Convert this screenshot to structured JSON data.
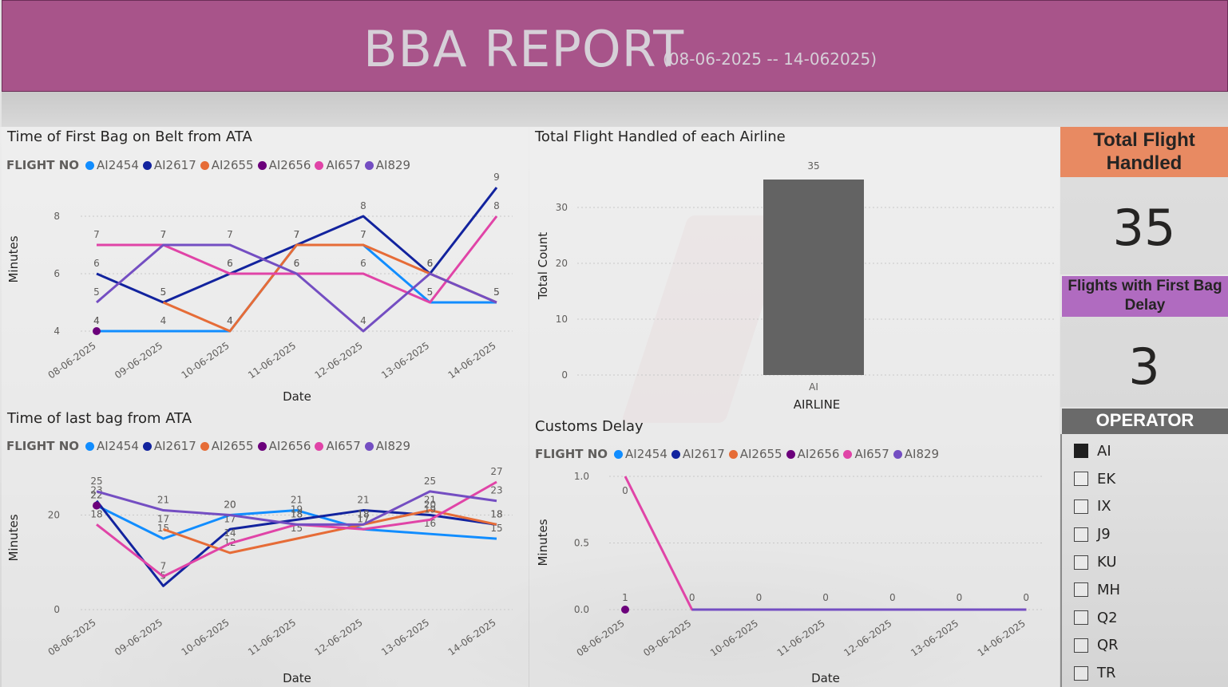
{
  "header": {
    "title": "BBA REPORT",
    "date_range": "(08-06-2025 -- 14-062025)"
  },
  "colors": {
    "AI2454": "#118dff",
    "AI2617": "#12239e",
    "AI2655": "#e66c37",
    "AI2656": "#6b007b",
    "AI657": "#e044a7",
    "AI829": "#744ec2"
  },
  "legend": {
    "title": "FLIGHT NO",
    "items": [
      "AI2454",
      "AI2617",
      "AI2655",
      "AI2656",
      "AI657",
      "AI829"
    ]
  },
  "kpi": {
    "total_label": "Total Flight Handled",
    "total_value": "35",
    "delay_label": "Flights with First Bag Delay",
    "delay_value": "3"
  },
  "operator": {
    "title": "OPERATOR",
    "options": [
      {
        "label": "AI",
        "checked": true
      },
      {
        "label": "EK",
        "checked": false
      },
      {
        "label": "IX",
        "checked": false
      },
      {
        "label": "J9",
        "checked": false
      },
      {
        "label": "KU",
        "checked": false
      },
      {
        "label": "MH",
        "checked": false
      },
      {
        "label": "Q2",
        "checked": false
      },
      {
        "label": "QR",
        "checked": false
      },
      {
        "label": "TR",
        "checked": false
      }
    ]
  },
  "chart_data": [
    {
      "id": "first_bag",
      "type": "line",
      "title": "Time of First Bag on Belt from ATA",
      "xlabel": "Date",
      "ylabel": "Minutes",
      "x": [
        "08-06-2025",
        "09-06-2025",
        "10-06-2025",
        "11-06-2025",
        "12-06-2025",
        "13-06-2025",
        "14-06-2025"
      ],
      "ylim": [
        4,
        9
      ],
      "yticks": [
        4,
        6,
        8
      ],
      "series": [
        {
          "name": "AI2454",
          "values": [
            4,
            4,
            4,
            7,
            7,
            5,
            5
          ]
        },
        {
          "name": "AI2617",
          "values": [
            6,
            5,
            6,
            7,
            8,
            6,
            9
          ]
        },
        {
          "name": "AI2655",
          "values": [
            null,
            5,
            4,
            7,
            7,
            6,
            5
          ]
        },
        {
          "name": "AI2656",
          "values": [
            4,
            null,
            null,
            null,
            null,
            null,
            null
          ]
        },
        {
          "name": "AI657",
          "values": [
            7,
            7,
            6,
            6,
            6,
            5,
            8
          ]
        },
        {
          "name": "AI829",
          "values": [
            5,
            7,
            7,
            6,
            4,
            6,
            5
          ]
        }
      ]
    },
    {
      "id": "total_flights",
      "type": "bar",
      "title": "Total Flight Handled of each Airline",
      "xlabel": "AIRLINE",
      "ylabel": "Total Count",
      "categories": [
        "AI"
      ],
      "values": [
        35
      ],
      "ylim": [
        0,
        35
      ],
      "yticks": [
        0,
        10,
        20,
        30
      ]
    },
    {
      "id": "last_bag",
      "type": "line",
      "title": "Time of last bag from ATA",
      "xlabel": "Date",
      "ylabel": "Minutes",
      "x": [
        "08-06-2025",
        "09-06-2025",
        "10-06-2025",
        "11-06-2025",
        "12-06-2025",
        "13-06-2025",
        "14-06-2025"
      ],
      "ylim": [
        0,
        27
      ],
      "yticks": [
        0,
        20
      ],
      "series": [
        {
          "name": "AI2454",
          "values": [
            22,
            15,
            20,
            21,
            17,
            16,
            15
          ]
        },
        {
          "name": "AI2617",
          "values": [
            23,
            5,
            17,
            19,
            21,
            20,
            18
          ]
        },
        {
          "name": "AI2655",
          "values": [
            null,
            17,
            12,
            15,
            18,
            21,
            18
          ]
        },
        {
          "name": "AI2656",
          "values": [
            22,
            null,
            null,
            null,
            null,
            null,
            null
          ]
        },
        {
          "name": "AI657",
          "values": [
            18,
            7,
            14,
            18,
            17,
            19,
            27
          ]
        },
        {
          "name": "AI829",
          "values": [
            25,
            21,
            20,
            18,
            18,
            25,
            23
          ]
        }
      ]
    },
    {
      "id": "customs",
      "type": "line",
      "title": "Customs Delay",
      "xlabel": "Date",
      "ylabel": "Minutes",
      "x": [
        "08-06-2025",
        "09-06-2025",
        "10-06-2025",
        "11-06-2025",
        "12-06-2025",
        "13-06-2025",
        "14-06-2025"
      ],
      "ylim": [
        0,
        1
      ],
      "yticks": [
        "0.0",
        "0.5",
        "1.0"
      ],
      "series": [
        {
          "name": "AI2454",
          "values": [
            null,
            0,
            0,
            0,
            0,
            0,
            0
          ]
        },
        {
          "name": "AI2617",
          "values": [
            null,
            0,
            0,
            0,
            0,
            0,
            0
          ]
        },
        {
          "name": "AI2655",
          "values": [
            null,
            0,
            0,
            0,
            0,
            0,
            0
          ]
        },
        {
          "name": "AI2656",
          "values": [
            0,
            null,
            null,
            null,
            null,
            null,
            null
          ]
        },
        {
          "name": "AI657",
          "values": [
            1,
            0,
            0,
            0,
            0,
            0,
            0
          ]
        },
        {
          "name": "AI829",
          "values": [
            null,
            0,
            0,
            0,
            0,
            0,
            0
          ]
        }
      ],
      "point_labels": [
        "0",
        "1",
        "0",
        "0",
        "0",
        "0",
        "0",
        "0"
      ]
    }
  ]
}
